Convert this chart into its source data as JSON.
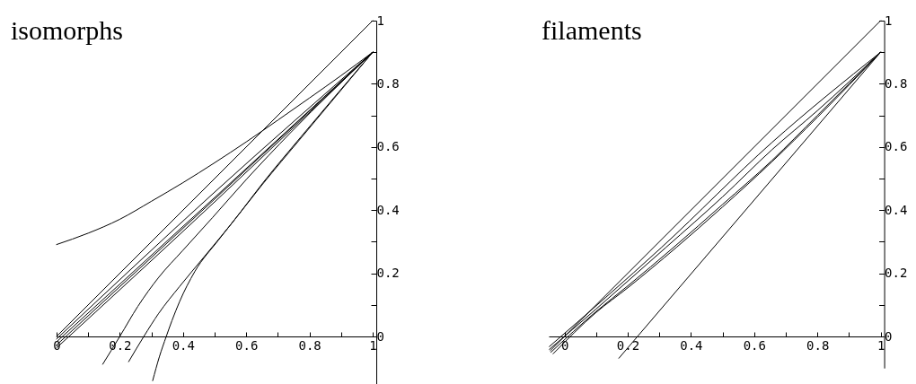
{
  "chart_data": [
    {
      "type": "line",
      "title": "isomorphs",
      "xlim": [
        0,
        1
      ],
      "ylim": [
        -0.15,
        1
      ],
      "xticks": [
        0,
        {
          "value": 0.1,
          "label": null
        },
        0.2,
        {
          "value": 0.3,
          "label": null
        },
        0.4,
        {
          "value": 0.5,
          "label": null
        },
        0.6,
        {
          "value": 0.7,
          "label": null
        },
        0.8,
        {
          "value": 0.9,
          "label": null
        },
        1
      ],
      "yticks": [
        0,
        {
          "value": 0.1,
          "label": null
        },
        0.2,
        {
          "value": 0.3,
          "label": null
        },
        0.4,
        {
          "value": 0.5,
          "label": null
        },
        0.6,
        {
          "value": 0.7,
          "label": null
        },
        0.8,
        {
          "value": 0.9,
          "label": null
        },
        1
      ],
      "series": [
        {
          "color": "#000000",
          "x": [
            0,
            1
          ],
          "values": [
            0,
            1
          ]
        },
        {
          "color": "#000000",
          "x": [
            0,
            0.1,
            0.2,
            0.3,
            0.4,
            0.5,
            0.6,
            0.7,
            0.8,
            0.9,
            1
          ],
          "values": [
            0.291,
            0.327,
            0.371,
            0.428,
            0.487,
            0.55,
            0.616,
            0.685,
            0.755,
            0.826,
            0.9
          ]
        },
        {
          "color": "#000000",
          "x": [
            0,
            0.5,
            1
          ],
          "values": [
            -0.008,
            0.457,
            0.9
          ]
        },
        {
          "color": "#000000",
          "x": [
            0,
            0.5,
            1
          ],
          "values": [
            -0.017,
            0.44,
            0.9
          ]
        },
        {
          "color": "#000000",
          "x": [
            0,
            0.5,
            1
          ],
          "values": [
            -0.027,
            0.435,
            0.9
          ]
        },
        {
          "color": "#000000",
          "x": [
            0,
            0.5,
            1
          ],
          "values": [
            -0.036,
            0.426,
            0.9
          ]
        },
        {
          "color": "#000000",
          "x": [
            0.146,
            0.2,
            0.257,
            0.323,
            0.399,
            0.493,
            0.602,
            0.74,
            1
          ],
          "values": [
            -0.088,
            0,
            0.095,
            0.187,
            0.272,
            0.376,
            0.499,
            0.645,
            0.9
          ]
        },
        {
          "color": "#000000",
          "x": [
            0.228,
            0.276,
            0.323,
            0.389,
            0.465,
            0.55,
            0.65,
            0.773,
            1
          ],
          "values": [
            -0.08,
            0,
            0.073,
            0.158,
            0.25,
            0.353,
            0.48,
            0.628,
            0.9
          ]
        },
        {
          "color": "#000000",
          "x": [
            0.304,
            0.325,
            0.347,
            0.365,
            0.389,
            0.437,
            0.512,
            0.579,
            0.654,
            0.773,
            1
          ],
          "values": [
            -0.14,
            -0.065,
            0,
            0.05,
            0.11,
            0.205,
            0.305,
            0.39,
            0.488,
            0.632,
            0.9
          ]
        }
      ]
    },
    {
      "type": "line",
      "title": "filaments",
      "xlim": [
        -0.05,
        1
      ],
      "ylim": [
        -0.1,
        1
      ],
      "xticks": [
        0,
        {
          "value": 0.1,
          "label": null
        },
        0.2,
        {
          "value": 0.3,
          "label": null
        },
        0.4,
        {
          "value": 0.5,
          "label": null
        },
        0.6,
        {
          "value": 0.7,
          "label": null
        },
        0.8,
        {
          "value": 0.9,
          "label": null
        },
        1
      ],
      "yticks": [
        0,
        {
          "value": 0.1,
          "label": null
        },
        0.2,
        {
          "value": 0.3,
          "label": null
        },
        0.4,
        {
          "value": 0.5,
          "label": null
        },
        0.6,
        {
          "value": 0.7,
          "label": null
        },
        0.8,
        {
          "value": 0.9,
          "label": null
        },
        1
      ],
      "series": [
        {
          "color": "#000000",
          "x": [
            -0.045,
            1
          ],
          "values": [
            -0.045,
            1
          ]
        },
        {
          "color": "#000000",
          "x": [
            -0.048,
            0.307,
            0.656,
            1
          ],
          "values": [
            -0.032,
            0.282,
            0.614,
            0.9
          ]
        },
        {
          "color": "#000000",
          "x": [
            -0.048,
            0.1,
            0.2,
            0.321,
            0.5,
            0.656,
            0.8,
            1
          ],
          "values": [
            -0.041,
            0.087,
            0.175,
            0.282,
            0.442,
            0.591,
            0.715,
            0.9
          ]
        },
        {
          "color": "#000000",
          "x": [
            -0.043,
            0.1,
            0.2,
            0.345,
            0.5,
            0.656,
            0.8,
            1
          ],
          "values": [
            -0.05,
            0.079,
            0.16,
            0.282,
            0.418,
            0.557,
            0.7,
            0.9
          ]
        },
        {
          "color": "#000000",
          "x": [
            -0.036,
            0.1,
            0.2,
            0.354,
            0.5,
            0.656,
            0.8,
            1
          ],
          "values": [
            -0.055,
            0.076,
            0.154,
            0.282,
            0.41,
            0.553,
            0.694,
            0.9
          ]
        },
        {
          "color": "#000000",
          "x": [
            0.172,
            1
          ],
          "values": [
            -0.069,
            0.9
          ]
        }
      ]
    }
  ]
}
